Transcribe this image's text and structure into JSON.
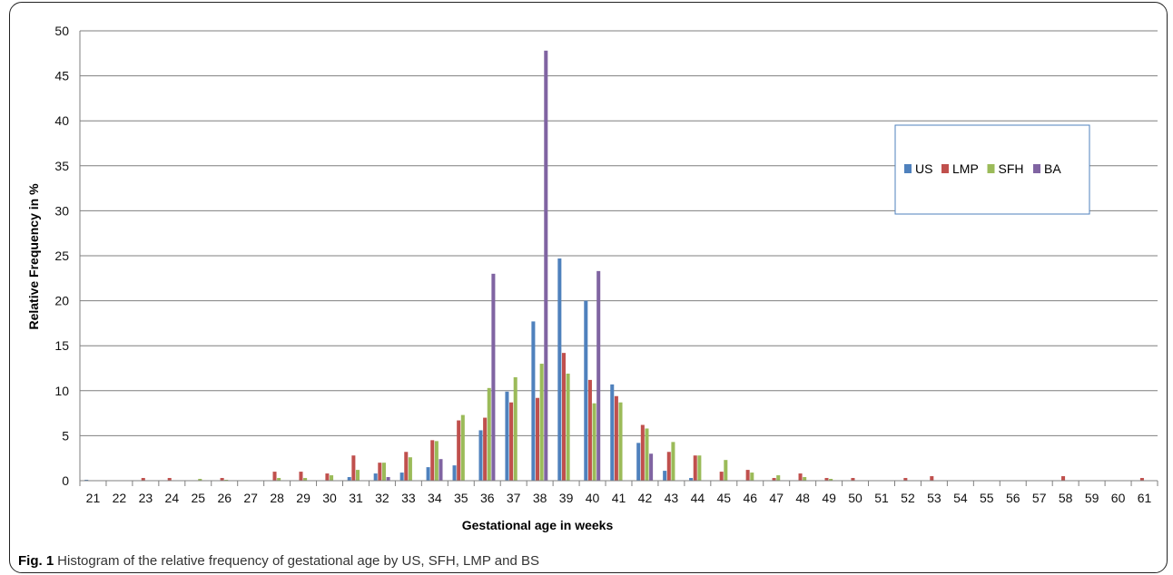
{
  "caption": {
    "label": "Fig. 1",
    "text": "Histogram of the relative frequency of gestational age by US, SFH, LMP and BS"
  },
  "chart_data": {
    "type": "bar",
    "title": "",
    "xlabel": "Gestational age in weeks",
    "ylabel": "Relative Frequency in %",
    "ylim": [
      0,
      50
    ],
    "yticks": [
      0,
      5,
      10,
      15,
      20,
      25,
      30,
      35,
      40,
      45,
      50
    ],
    "grid": true,
    "legend_position": "right",
    "categories": [
      "21",
      "22",
      "23",
      "24",
      "25",
      "26",
      "27",
      "28",
      "29",
      "30",
      "31",
      "32",
      "33",
      "34",
      "35",
      "36",
      "37",
      "38",
      "39",
      "40",
      "41",
      "42",
      "43",
      "44",
      "45",
      "46",
      "47",
      "48",
      "49",
      "50",
      "51",
      "52",
      "53",
      "54",
      "55",
      "56",
      "57",
      "58",
      "59",
      "60",
      "61"
    ],
    "series": [
      {
        "name": "US",
        "color": "#4f81bd",
        "values": [
          0.1,
          0,
          0,
          0,
          0,
          0,
          0,
          0,
          0,
          0,
          0.4,
          0.8,
          0.9,
          1.5,
          1.7,
          5.6,
          9.9,
          17.7,
          24.7,
          20.0,
          10.7,
          4.2,
          1.1,
          0.3,
          0,
          0,
          0,
          0,
          0,
          0,
          0,
          0,
          0,
          0,
          0,
          0,
          0,
          0,
          0,
          0,
          0
        ]
      },
      {
        "name": "LMP",
        "color": "#c0504d",
        "values": [
          0,
          0,
          0.3,
          0.3,
          0,
          0.3,
          0,
          1.0,
          1.0,
          0.8,
          2.8,
          2.0,
          3.2,
          4.5,
          6.7,
          7.0,
          8.7,
          9.2,
          14.2,
          11.2,
          9.4,
          6.2,
          3.2,
          2.8,
          1.0,
          1.2,
          0.3,
          0.8,
          0.3,
          0.3,
          0,
          0.3,
          0.5,
          0,
          0,
          0,
          0,
          0.5,
          0,
          0,
          0.3
        ]
      },
      {
        "name": "SFH",
        "color": "#9bbb59",
        "values": [
          0,
          0,
          0,
          0,
          0.2,
          0.1,
          0,
          0.3,
          0.3,
          0.6,
          1.2,
          2.0,
          2.6,
          4.4,
          7.3,
          10.3,
          11.5,
          13.0,
          11.9,
          8.6,
          8.7,
          5.8,
          4.3,
          2.8,
          2.3,
          0.9,
          0.6,
          0.4,
          0.2,
          0,
          0,
          0,
          0,
          0,
          0,
          0,
          0,
          0,
          0,
          0,
          0
        ]
      },
      {
        "name": "BA",
        "color": "#8064a2",
        "values": [
          0,
          0,
          0,
          0,
          0,
          0,
          0,
          0,
          0,
          0,
          0,
          0.4,
          0,
          2.4,
          0,
          23.0,
          0,
          47.8,
          0,
          23.3,
          0,
          3.0,
          0,
          0,
          0,
          0,
          0,
          0,
          0,
          0,
          0,
          0,
          0,
          0,
          0,
          0,
          0,
          0,
          0,
          0,
          0
        ]
      }
    ]
  }
}
